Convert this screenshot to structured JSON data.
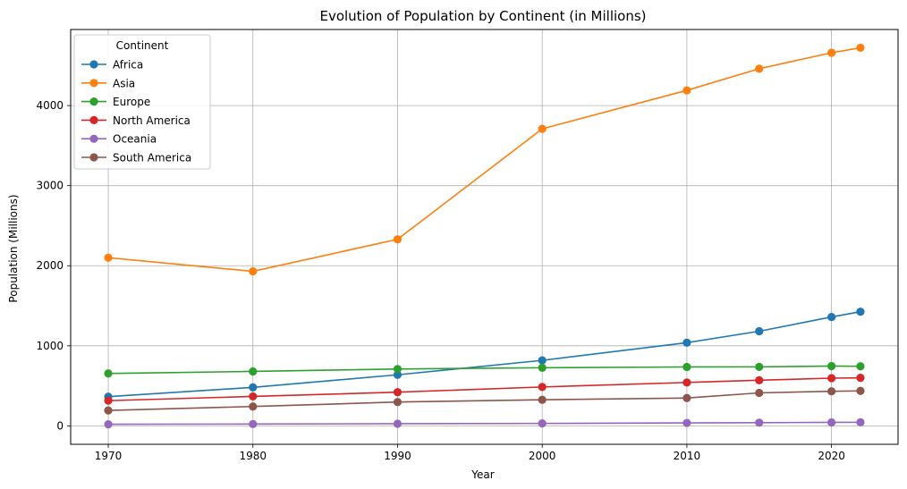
{
  "chart_data": {
    "type": "line",
    "title": "Evolution of Population by Continent (in Millions)",
    "xlabel": "Year",
    "ylabel": "Population (Millions)",
    "x": [
      1970,
      1980,
      1990,
      2000,
      2010,
      2015,
      2020,
      2022
    ],
    "xlim": [
      1967.4,
      2024.6
    ],
    "ylim": [
      -230,
      4950
    ],
    "xticks": [
      1970,
      1980,
      1990,
      2000,
      2010,
      2020
    ],
    "yticks": [
      0,
      1000,
      2000,
      3000,
      4000
    ],
    "grid": true,
    "legend": {
      "title": "Continent",
      "placement": "top-left"
    },
    "series": [
      {
        "name": "Africa",
        "color": "#1f77b4",
        "values": [
          365,
          481,
          638,
          818,
          1039,
          1182,
          1360,
          1426
        ]
      },
      {
        "name": "Asia",
        "color": "#ff7f0e",
        "values": [
          2100,
          1930,
          2330,
          3710,
          4190,
          4460,
          4660,
          4722
        ]
      },
      {
        "name": "Europe",
        "color": "#2ca02c",
        "values": [
          655,
          680,
          710,
          726,
          736,
          737,
          747,
          744
        ]
      },
      {
        "name": "North America",
        "color": "#d62728",
        "values": [
          315,
          368,
          421,
          486,
          542,
          570,
          596,
          600
        ]
      },
      {
        "name": "Oceania",
        "color": "#9467bd",
        "values": [
          20,
          23,
          27,
          31,
          37,
          40,
          44,
          45
        ]
      },
      {
        "name": "South America",
        "color": "#8c564b",
        "values": [
          193,
          242,
          298,
          326,
          348,
          412,
          432,
          437
        ]
      }
    ]
  }
}
